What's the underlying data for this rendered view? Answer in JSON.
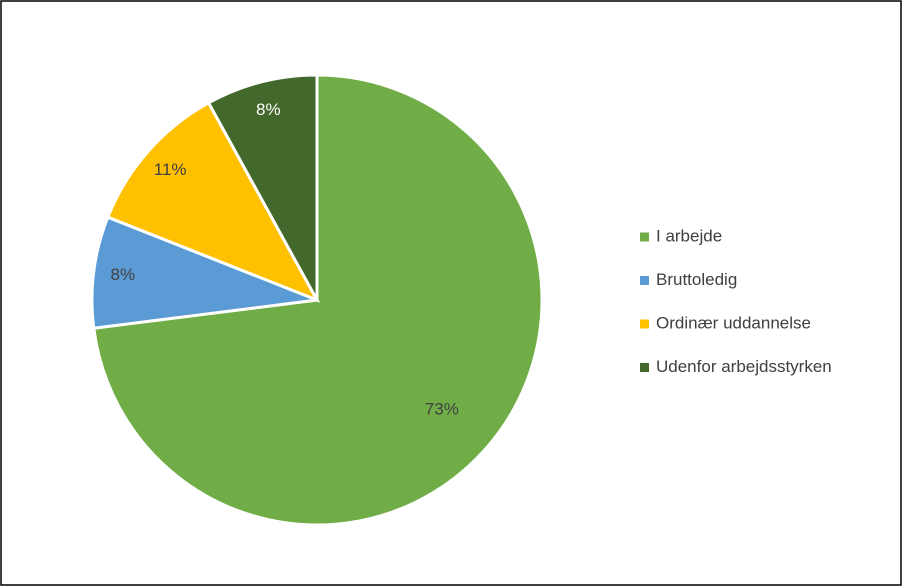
{
  "chart_data": {
    "type": "pie",
    "categories": [
      "I arbejde",
      "Bruttoledig",
      "Ordinær uddannelse",
      "Udenfor arbejdsstyrken"
    ],
    "values": [
      73,
      8,
      11,
      8
    ],
    "value_labels": [
      "73%",
      "8%",
      "11%",
      "8%"
    ],
    "colors": [
      "#70ad47",
      "#5b9bd5",
      "#ffc000",
      "#43682b"
    ],
    "legend": "right"
  }
}
